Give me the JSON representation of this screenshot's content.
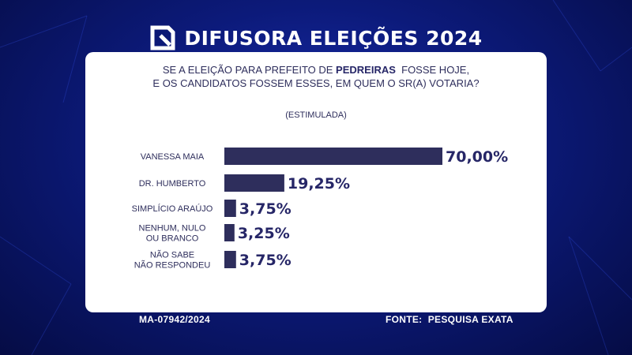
{
  "header": {
    "brand": "DIFUSORA ELEIÇÕES 2024",
    "logo_icon": "difusora-logo-icon"
  },
  "question": {
    "line1_before": "SE A ELEIÇÃO PARA PREFEITO DE ",
    "line1_emph": "PEDREIRAS",
    "line1_after": "  FOSSE HOJE,",
    "line2": "E OS CANDIDATOS FOSSEM ESSES, EM QUEM O SR(A) VOTARIA?"
  },
  "subtitle": "(ESTIMULADA)",
  "colors": {
    "bar": "#2e2e5c",
    "value_text": "#262667",
    "background": "#0c1a7a"
  },
  "chart_data": {
    "type": "bar",
    "orientation": "horizontal",
    "categories": [
      [
        "VANESSA MAIA"
      ],
      [
        "DR. HUMBERTO"
      ],
      [
        "SIMPLÍCIO ARAÚJO"
      ],
      [
        "NENHUM, NULO",
        "OU BRANCO"
      ],
      [
        "NÃO SABE",
        "NÃO RESPONDEU"
      ]
    ],
    "values": [
      70.0,
      19.25,
      3.75,
      3.25,
      3.75
    ],
    "value_labels": [
      "70,00%",
      "19,25%",
      "3,75%",
      "3,25%",
      "3,75%"
    ],
    "xlim": [
      0,
      70
    ],
    "grid": false,
    "legend": "none"
  },
  "footer": {
    "registration": "MA-07942/2024",
    "source": "FONTE:  PESQUISA EXATA"
  }
}
